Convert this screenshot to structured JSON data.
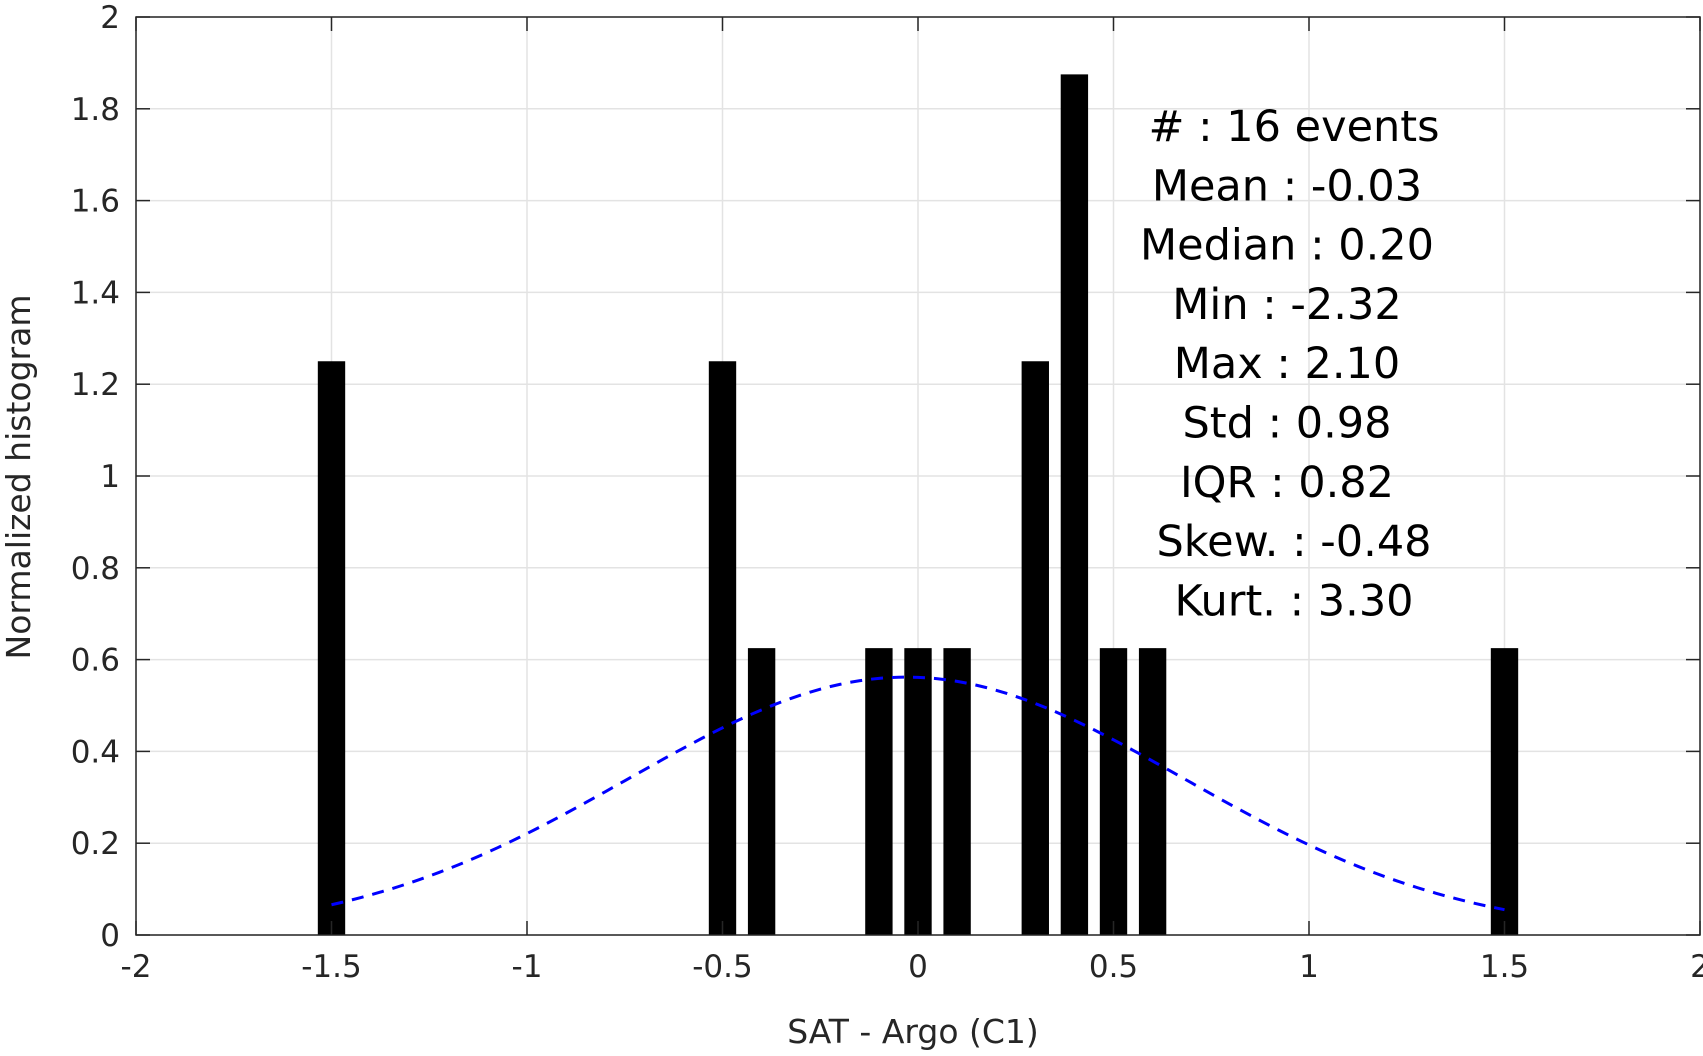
{
  "chart_data": {
    "type": "bar",
    "xlabel": "SAT - Argo (C1)",
    "ylabel": "Normalized histogram",
    "xlim": [
      -2,
      2
    ],
    "ylim": [
      0,
      2
    ],
    "xticks": [
      -2,
      -1.5,
      -1,
      -0.5,
      0,
      0.5,
      1,
      1.5,
      2
    ],
    "xtick_labels": [
      "-2",
      "-1.5",
      "-1",
      "-0.5",
      "0",
      "0.5",
      "1",
      "1.5",
      "2"
    ],
    "yticks": [
      0,
      0.2,
      0.4,
      0.6,
      0.8,
      1,
      1.2,
      1.4,
      1.6,
      1.8,
      2
    ],
    "ytick_labels": [
      "0",
      "0.2",
      "0.4",
      "0.6",
      "0.8",
      "1",
      "1.2",
      "1.4",
      "1.6",
      "1.8",
      "2"
    ],
    "grid": true,
    "bar_width": 0.07,
    "bar_color": "#000000",
    "bars": [
      {
        "x": -1.5,
        "y": 1.25
      },
      {
        "x": -0.5,
        "y": 1.25
      },
      {
        "x": -0.4,
        "y": 0.625
      },
      {
        "x": -0.1,
        "y": 0.625
      },
      {
        "x": 0.0,
        "y": 0.625
      },
      {
        "x": 0.1,
        "y": 0.625
      },
      {
        "x": 0.3,
        "y": 1.25
      },
      {
        "x": 0.4,
        "y": 1.875
      },
      {
        "x": 0.5,
        "y": 0.625
      },
      {
        "x": 0.6,
        "y": 0.625
      },
      {
        "x": 1.5,
        "y": 0.625
      }
    ],
    "fit_curve": {
      "type": "normal",
      "mean": -0.03,
      "std": 0.71,
      "x_range": [
        -1.5,
        1.5
      ],
      "color": "#0000ff",
      "style": "dashed"
    },
    "stats": [
      {
        "label": "#  : 16 events"
      },
      {
        "label": "Mean : -0.03"
      },
      {
        "label": "Median : 0.20"
      },
      {
        "label": "Min : -2.32"
      },
      {
        "label": "Max : 2.10"
      },
      {
        "label": "Std : 0.98"
      },
      {
        "label": "IQR : 0.82"
      },
      {
        "label": "Skew. : -0.48"
      },
      {
        "label": "Kurt. : 3.30"
      }
    ]
  }
}
